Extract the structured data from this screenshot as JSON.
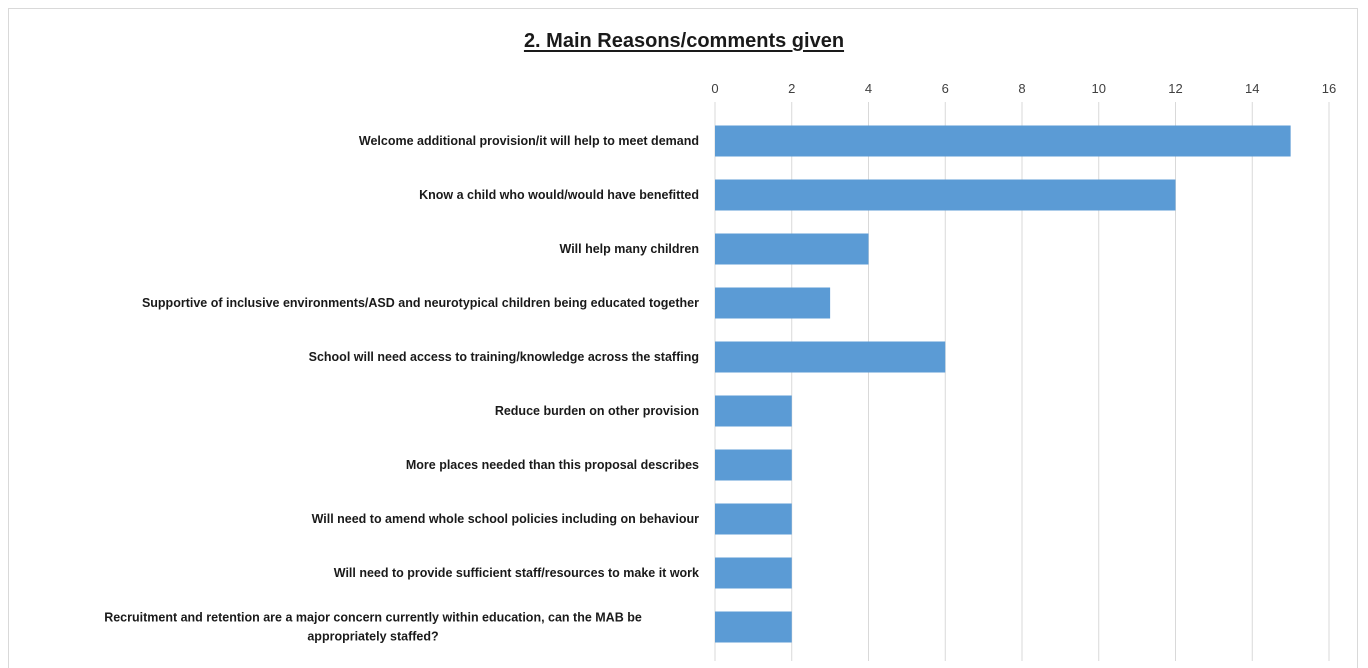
{
  "chart_data": {
    "type": "bar",
    "orientation": "horizontal",
    "title": "2. Main Reasons/comments given",
    "xlabel": "",
    "ylabel": "",
    "xlim": [
      0,
      16
    ],
    "ticks": [
      "0",
      "2",
      "4",
      "6",
      "8",
      "10",
      "12",
      "14",
      "16"
    ],
    "axis_position": "top",
    "grid": true,
    "bar_color": "#5b9bd5",
    "categories": [
      [
        "Welcome additional provision/it will help to meet demand"
      ],
      [
        "Know a child who would/would have benefitted"
      ],
      [
        "Will help many children"
      ],
      [
        "Supportive of inclusive environments/ASD and neurotypical children being educated together"
      ],
      [
        "School will need access to training/knowledge across the staffing"
      ],
      [
        "Reduce burden on other provision"
      ],
      [
        "More places needed than this proposal describes"
      ],
      [
        "Will need to amend whole school policies including on behaviour"
      ],
      [
        "Will need to provide sufficient staff/resources to make it work"
      ],
      [
        "Recruitment and retention are a major concern currently within education, can the MAB be",
        "appropriately staffed?"
      ]
    ],
    "values": [
      15,
      12,
      4,
      3,
      6,
      2,
      2,
      2,
      2,
      2
    ]
  }
}
